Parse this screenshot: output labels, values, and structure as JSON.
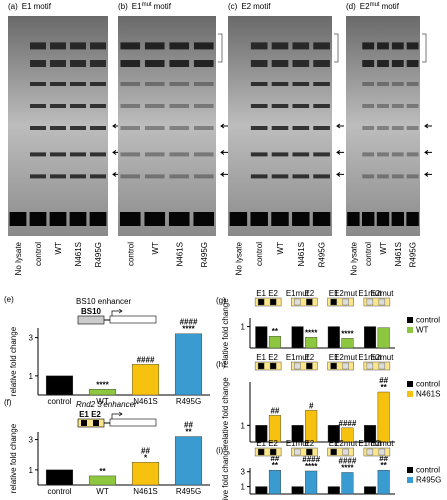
{
  "gels": [
    {
      "label": "(a)",
      "title": "E1",
      "title_rest": "motif",
      "lanes": [
        "No lysate",
        "control",
        "WT",
        "N461S",
        "R495G"
      ]
    },
    {
      "label": "(b)",
      "title": "E1",
      "title_sup": "mut",
      "title_rest": "motif",
      "lanes": [
        "control",
        "WT",
        "N461S",
        "R495G"
      ]
    },
    {
      "label": "(c)",
      "title": "E2",
      "title_rest": "motif",
      "lanes": [
        "No lysate",
        "control",
        "WT",
        "N461S",
        "R495G"
      ]
    },
    {
      "label": "(d)",
      "title": "E2",
      "title_sup": "mut",
      "title_rest": "motif",
      "lanes": [
        "No lysate",
        "control",
        "WT",
        "N461S",
        "R495G"
      ]
    }
  ],
  "chart_data": [
    {
      "type": "bar",
      "panel": "(e)",
      "title": "BS10 enhancer",
      "element": "BS10",
      "ylabel": "relative fold change",
      "categories": [
        "control",
        "WT",
        "N461S",
        "R495G"
      ],
      "series": [
        {
          "values": [
            1,
            0.3,
            1.6,
            3.2
          ],
          "colors": [
            "#000000",
            "#8dc63f",
            "#f7c10f",
            "#3a9bd0"
          ],
          "sig_control": [
            null,
            "****",
            null,
            "****"
          ],
          "sig_wt": [
            null,
            null,
            "####",
            "####"
          ]
        }
      ],
      "ylim": [
        0,
        3.5
      ],
      "yticks": [
        1,
        3
      ]
    },
    {
      "type": "bar",
      "panel": "(f)",
      "title": "Rnd2 3'enhancer",
      "elements": [
        "E1",
        "E2"
      ],
      "ylabel": "relative fold change",
      "categories": [
        "control",
        "WT",
        "N461S",
        "R495G"
      ],
      "series": [
        {
          "values": [
            1,
            0.6,
            1.5,
            3.2
          ],
          "colors": [
            "#000000",
            "#8dc63f",
            "#f7c10f",
            "#3a9bd0"
          ],
          "sig_control": [
            null,
            "**",
            "*",
            "**"
          ],
          "sig_wt": [
            null,
            null,
            "##",
            "##"
          ]
        }
      ],
      "ylim": [
        0,
        3.5
      ],
      "yticks": [
        1,
        3
      ]
    },
    {
      "type": "bar",
      "panel": "(g)",
      "ylabel": "relative fold change",
      "categories": [
        [
          "E1",
          "E2"
        ],
        [
          "E1mut",
          "E2"
        ],
        [
          "E1",
          "E2mut"
        ],
        [
          "E1mut",
          "E2mut"
        ]
      ],
      "series": [
        {
          "name": "control",
          "color": "#000000",
          "values": [
            1,
            1,
            1,
            1
          ]
        },
        {
          "name": "WT",
          "color": "#8dc63f",
          "values": [
            0.55,
            0.5,
            0.45,
            0.95
          ],
          "sig_control": [
            "**",
            "****",
            "****",
            null
          ]
        }
      ],
      "ylim": [
        0,
        1.4
      ],
      "yticks": [
        1
      ]
    },
    {
      "type": "bar",
      "panel": "(h)",
      "ylabel": "relative fold change",
      "categories": [
        [
          "E1",
          "E2"
        ],
        [
          "E1mut",
          "E2"
        ],
        [
          "E1",
          "E2mut"
        ],
        [
          "E1mut",
          "E2mut"
        ]
      ],
      "series": [
        {
          "name": "control",
          "color": "#000000",
          "values": [
            1,
            1,
            1,
            1
          ]
        },
        {
          "name": "N461S",
          "color": "#f7c10f",
          "values": [
            1.6,
            1.9,
            0.85,
            3.0
          ],
          "sig_control": [
            null,
            null,
            null,
            "**"
          ],
          "sig_wt": [
            "##",
            "#",
            "####",
            "##"
          ]
        }
      ],
      "ylim": [
        0,
        3.6
      ],
      "yticks": [
        1
      ]
    },
    {
      "type": "bar",
      "panel": "(i)",
      "ylabel": "relative fold change",
      "categories": [
        [
          "E1",
          "E2"
        ],
        [
          "E1mut",
          "E2"
        ],
        [
          "E1",
          "E2mut"
        ],
        [
          "E1mut",
          "E2mut"
        ]
      ],
      "series": [
        {
          "name": "control",
          "color": "#000000",
          "values": [
            1,
            1,
            1,
            1
          ]
        },
        {
          "name": "R495G",
          "color": "#3a9bd0",
          "values": [
            3.2,
            3.1,
            2.9,
            3.2
          ],
          "sig_control": [
            "**",
            "****",
            "****",
            "**"
          ],
          "sig_wt": [
            "##",
            "####",
            "####",
            "##"
          ]
        }
      ],
      "ylim": [
        0,
        3.5
      ],
      "yticks": [
        1,
        3
      ]
    }
  ]
}
